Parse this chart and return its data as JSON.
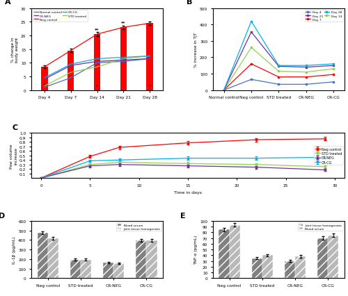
{
  "A": {
    "days": [
      "Day 4",
      "Day 7",
      "Day 14",
      "Day 21",
      "Day 28"
    ],
    "normal_control": [
      1.0,
      4.5,
      10.0,
      10.5,
      11.5
    ],
    "neg_control": [
      8.5,
      14.5,
      20.5,
      23.0,
      24.5
    ],
    "std_treated": [
      1.5,
      6.5,
      8.5,
      11.5,
      12.5
    ],
    "cr_neg": [
      4.0,
      9.0,
      10.5,
      11.0,
      11.5
    ],
    "cr_cg": [
      4.5,
      9.5,
      11.5,
      12.0,
      12.5
    ],
    "neg_errors": [
      0.5,
      0.6,
      0.7,
      0.6,
      0.6
    ],
    "ylabel": "% change in\nbody weight",
    "ylim": [
      0,
      30
    ],
    "yticks": [
      0,
      5,
      10,
      15,
      20,
      25,
      30
    ],
    "annotations": [
      {
        "day_idx": 0,
        "text": "*",
        "y": 2.0
      },
      {
        "day_idx": 2,
        "text": "**",
        "y": 22.0
      },
      {
        "day_idx": 2,
        "text": "*",
        "y": 1.5
      },
      {
        "day_idx": 3,
        "text": "**",
        "y": 24.5
      },
      {
        "day_idx": 4,
        "text": "*",
        "y": 1.5
      }
    ]
  },
  "B": {
    "groups": [
      "Normal control",
      "Neg control",
      "STD treated",
      "CR-NEG",
      "CR-CG"
    ],
    "day4": [
      0,
      65,
      35,
      35,
      50
    ],
    "day7": [
      0,
      160,
      80,
      80,
      95
    ],
    "day14": [
      0,
      260,
      115,
      110,
      130
    ],
    "day21": [
      0,
      355,
      145,
      140,
      150
    ],
    "day28": [
      0,
      420,
      150,
      150,
      160
    ],
    "ylabel": "% increase in TJT",
    "ylim": [
      0,
      500
    ],
    "yticks": [
      0,
      100,
      200,
      300,
      400,
      500
    ]
  },
  "C": {
    "days": [
      0,
      5,
      8,
      15,
      22,
      29
    ],
    "neg_control": [
      0.0,
      0.48,
      0.68,
      0.78,
      0.85,
      0.87
    ],
    "std_treated": [
      0.0,
      0.3,
      0.35,
      0.32,
      0.3,
      0.25
    ],
    "cr_neg": [
      0.0,
      0.27,
      0.3,
      0.27,
      0.24,
      0.18
    ],
    "cr_cg": [
      0.0,
      0.38,
      0.4,
      0.44,
      0.44,
      0.46
    ],
    "neg_err": [
      0.0,
      0.03,
      0.04,
      0.04,
      0.04,
      0.04
    ],
    "std_err": [
      0.0,
      0.03,
      0.03,
      0.04,
      0.03,
      0.03
    ],
    "cr_neg_err": [
      0.0,
      0.03,
      0.03,
      0.03,
      0.03,
      0.03
    ],
    "cr_cg_err": [
      0.0,
      0.03,
      0.03,
      0.04,
      0.04,
      0.04
    ],
    "xlabel": "Time in days",
    "ylabel": "Paw volume\nincrease",
    "ylim": [
      0,
      1.0
    ],
    "yticks": [
      0.1,
      0.2,
      0.3,
      0.4,
      0.5,
      0.6,
      0.7,
      0.8,
      0.9,
      1.0
    ]
  },
  "D": {
    "groups": [
      "Neg control",
      "STD treated",
      "CR-NEG",
      "CR-CG"
    ],
    "blood_serum": [
      475,
      195,
      160,
      395
    ],
    "joint_tissue": [
      415,
      195,
      155,
      395
    ],
    "blood_err": [
      15,
      10,
      8,
      12
    ],
    "joint_err": [
      15,
      10,
      8,
      12
    ],
    "ylabel": "IL-1β (pg/mL)",
    "ylim": [
      0,
      600
    ],
    "yticks": [
      0,
      100,
      200,
      300,
      400,
      500,
      600
    ]
  },
  "E": {
    "groups": [
      "Neg control",
      "STD treated",
      "CR-NEG",
      "CR-CG"
    ],
    "joint_tissue": [
      85,
      35,
      30,
      70
    ],
    "blood_serum": [
      93,
      40,
      38,
      75
    ],
    "joint_err": [
      3,
      2,
      2,
      3
    ],
    "blood_err": [
      3,
      2,
      2,
      3
    ],
    "ylabel": "TNF-α (pg/mL)",
    "ylim": [
      0,
      100
    ],
    "yticks": [
      0,
      10,
      20,
      30,
      40,
      50,
      60,
      70,
      80,
      90,
      100
    ]
  },
  "colors": {
    "normal_control": "#4472C4",
    "neg_control": "#FF0000",
    "std_treated": "#92D050",
    "cr_neg": "#7030A0",
    "cr_cg": "#00B0F0",
    "bar_dark": "#808080",
    "bar_light": "#B8B8B8"
  }
}
